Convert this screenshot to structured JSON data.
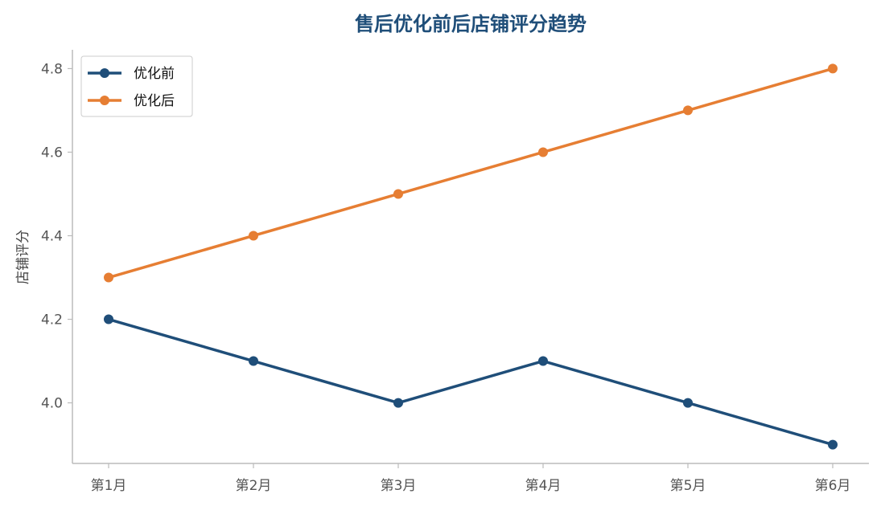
{
  "chart_data": {
    "type": "line",
    "title": "售后优化前后店铺评分趋势",
    "xlabel": "",
    "ylabel": "店铺评分",
    "categories": [
      "第1月",
      "第2月",
      "第3月",
      "第4月",
      "第5月",
      "第6月"
    ],
    "series": [
      {
        "name": "优化前",
        "values": [
          4.2,
          4.1,
          4.0,
          4.1,
          4.0,
          3.9
        ],
        "color": "#1f4e79"
      },
      {
        "name": "优化后",
        "values": [
          4.3,
          4.4,
          4.5,
          4.6,
          4.7,
          4.8
        ],
        "color": "#e67e33"
      }
    ],
    "ylim": [
      3.855,
      4.845
    ],
    "yticks": [
      "4.0",
      "4.2",
      "4.4",
      "4.6",
      "4.8"
    ],
    "grid": false,
    "legend_position": "top-left",
    "title_color": "#1f4e79",
    "axis_color": "#bbbbbb"
  }
}
